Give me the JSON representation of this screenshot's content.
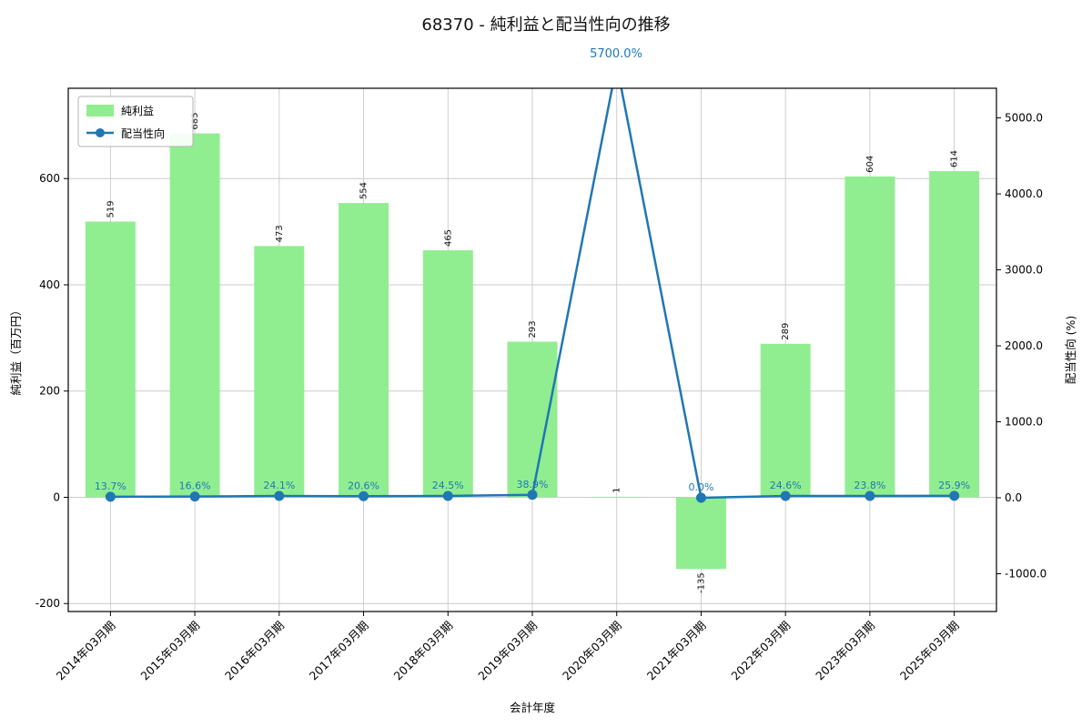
{
  "page": {
    "title": "68370 - 純利益と配当性向の推移"
  },
  "chart_data": {
    "type": "bar+line",
    "title": "68370 - 純利益と配当性向の推移",
    "xlabel": "会計年度",
    "ylabel_left": "純利益（百万円）",
    "ylabel_right": "配当性向 (%)",
    "grid": true,
    "legend_position": "upper left",
    "categories": [
      "2014年03月期",
      "2015年03月期",
      "2016年03月期",
      "2017年03月期",
      "2018年03月期",
      "2019年03月期",
      "2020年03月期",
      "2021年03月期",
      "2022年03月期",
      "2023年03月期",
      "2025年03月期"
    ],
    "series": [
      {
        "name": "純利益",
        "type": "bar",
        "axis": "left",
        "color": "#90ee90",
        "values": [
          519,
          685,
          473,
          554,
          465,
          293,
          1,
          -135,
          289,
          604,
          614
        ],
        "labels": [
          "519",
          "685",
          "473",
          "554",
          "465",
          "293",
          "1",
          "-135",
          "289",
          "604",
          "614"
        ]
      },
      {
        "name": "配当性向",
        "type": "line",
        "axis": "right",
        "color": "#1f77b4",
        "values": [
          13.7,
          16.6,
          24.1,
          20.6,
          24.5,
          38.9,
          5700.0,
          0.0,
          24.6,
          23.8,
          25.9
        ],
        "labels": [
          "13.7%",
          "16.6%",
          "24.1%",
          "20.6%",
          "24.5%",
          "38.9%",
          "5700.0%",
          "0.0%",
          "24.6%",
          "23.8%",
          "25.9%"
        ]
      }
    ],
    "left_axis": {
      "lim": [
        -215,
        770
      ],
      "ticks": [
        -200,
        0,
        200,
        400,
        600
      ],
      "tick_labels": [
        "-200",
        "0",
        "200",
        "400",
        "600"
      ]
    },
    "right_axis": {
      "lim": [
        -1497,
        5390
      ],
      "ticks": [
        -1000,
        0,
        1000,
        2000,
        3000,
        4000,
        5000
      ],
      "tick_labels": [
        "-1000.0",
        "0.0",
        "1000.0",
        "2000.0",
        "3000.0",
        "4000.0",
        "5000.0"
      ]
    },
    "annotation": {
      "text": "5700.0%",
      "x_category": "2020年03月期",
      "color": "#1f77b4"
    },
    "colors": {
      "grid": "#c9c9c9",
      "spine": "#000000",
      "bar_label": "#111111"
    }
  }
}
